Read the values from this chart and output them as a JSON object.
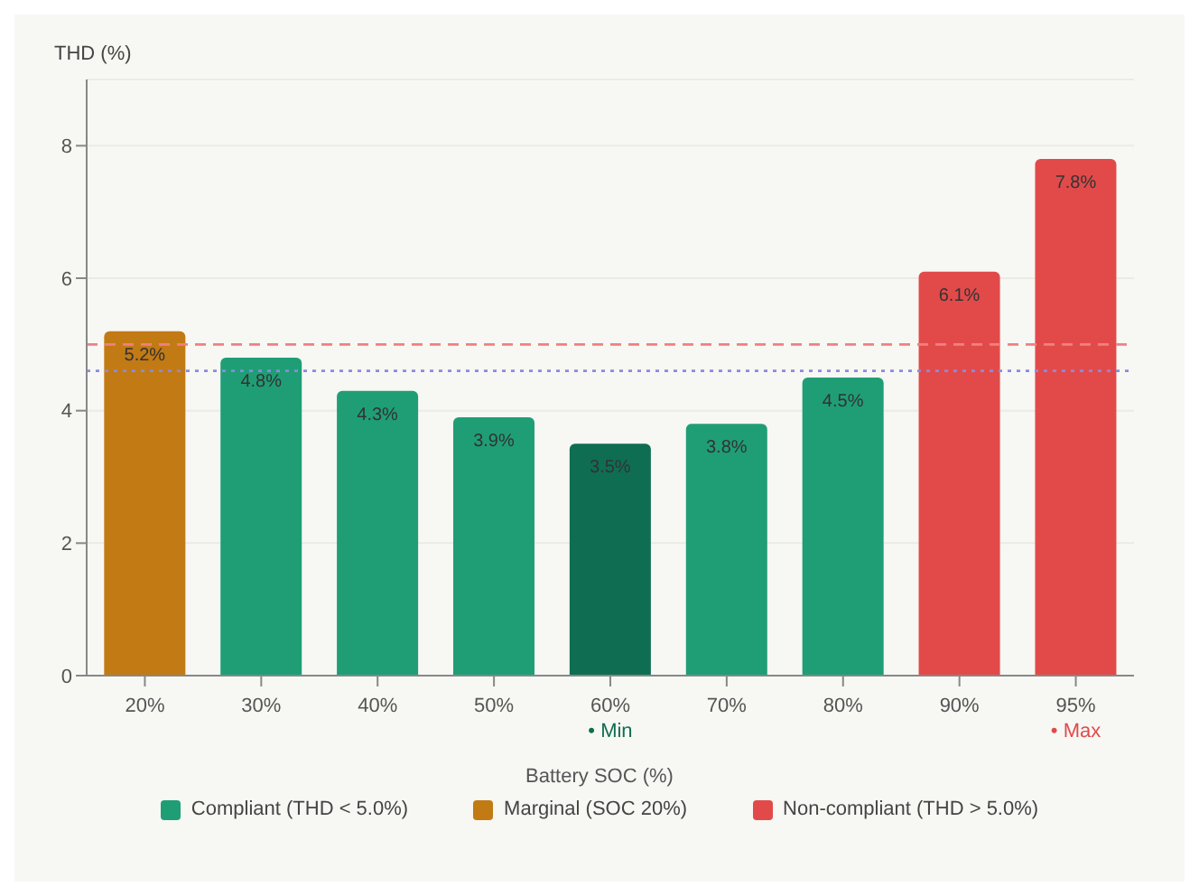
{
  "chart_data": {
    "type": "bar",
    "stacked": true,
    "xlabel": "Battery SOC (%)",
    "ylabel": "THD (%)",
    "categories": [
      "20%",
      "30%",
      "40%",
      "50%",
      "60%",
      "70%",
      "80%",
      "90%",
      "95%"
    ],
    "series": [
      {
        "name": "Compliant (THD < 5.0%)",
        "color": "#1f9e75",
        "colors": [
          null,
          "#1f9e75",
          "#1f9e75",
          "#1f9e75",
          "#0f6e52",
          "#1f9e75",
          "#1f9e75",
          null,
          null
        ],
        "values": [
          null,
          4.8,
          4.3,
          3.9,
          3.5,
          3.8,
          4.5,
          null,
          null
        ],
        "value_labels": [
          null,
          "4.8%",
          "4.3%",
          "3.9%",
          "3.5%",
          "3.8%",
          "4.5%",
          null,
          null
        ]
      },
      {
        "name": "Marginal (SOC 20%)",
        "color": "#c27a14",
        "values": [
          5.2,
          null,
          null,
          null,
          null,
          null,
          null,
          null,
          null
        ],
        "value_labels": [
          "5.2%",
          null,
          null,
          null,
          null,
          null,
          null,
          null,
          null
        ]
      },
      {
        "name": "Non-compliant (THD > 5.0%)",
        "color": "#e24a4a",
        "values": [
          null,
          null,
          null,
          null,
          null,
          null,
          null,
          6.1,
          7.8
        ],
        "value_labels": [
          null,
          null,
          null,
          null,
          null,
          null,
          null,
          "6.1%",
          "7.8%"
        ]
      }
    ],
    "ylim": [
      0,
      9
    ],
    "yticks": [
      0,
      2,
      4,
      6,
      8
    ],
    "grid": "y",
    "legend": "bottom",
    "ref_lines": [
      {
        "axis": "y",
        "value": 5.0,
        "color": "#f08080",
        "line_style": "dashed"
      },
      {
        "axis": "y",
        "value": 4.6,
        "color": "#8a8ae0",
        "line_style": "dotted"
      }
    ],
    "annotations": [
      "• Min",
      "• Max"
    ]
  }
}
